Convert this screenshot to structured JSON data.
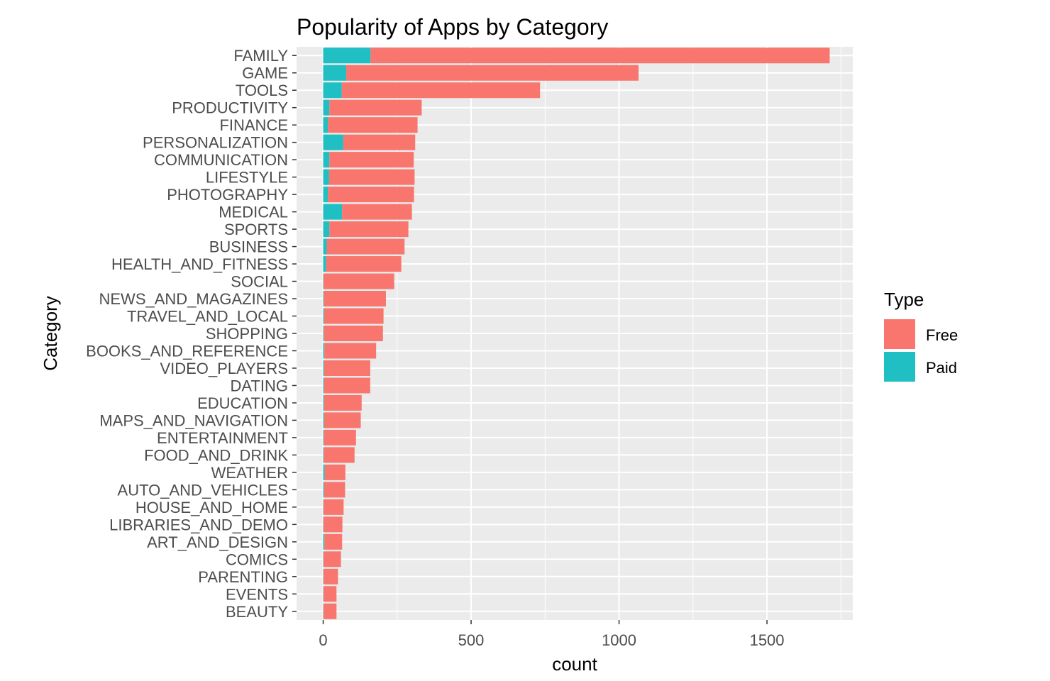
{
  "chart_data": {
    "type": "bar",
    "orientation": "horizontal",
    "stacked": true,
    "title": "Popularity of Apps by Category",
    "xlabel": "count",
    "ylabel": "Category",
    "xlim": [
      -90,
      1790
    ],
    "xticks": [
      0,
      500,
      1000,
      1500
    ],
    "categories": [
      "FAMILY",
      "GAME",
      "TOOLS",
      "PRODUCTIVITY",
      "FINANCE",
      "PERSONALIZATION",
      "COMMUNICATION",
      "LIFESTYLE",
      "PHOTOGRAPHY",
      "MEDICAL",
      "SPORTS",
      "BUSINESS",
      "HEALTH_AND_FITNESS",
      "SOCIAL",
      "NEWS_AND_MAGAZINES",
      "TRAVEL_AND_LOCAL",
      "SHOPPING",
      "BOOKS_AND_REFERENCE",
      "VIDEO_PLAYERS",
      "DATING",
      "EDUCATION",
      "MAPS_AND_NAVIGATION",
      "ENTERTAINMENT",
      "FOOD_AND_DRINK",
      "WEATHER",
      "AUTO_AND_VEHICLES",
      "HOUSE_AND_HOME",
      "LIBRARIES_AND_DEMO",
      "ART_AND_DESIGN",
      "COMICS",
      "PARENTING",
      "EVENTS",
      "BEAUTY"
    ],
    "series": [
      {
        "name": "Paid",
        "color": "#1fbfc4",
        "values": [
          160,
          78,
          63,
          21,
          16,
          68,
          21,
          20,
          16,
          64,
          21,
          12,
          10,
          1,
          2,
          3,
          2,
          4,
          3,
          3,
          3,
          3,
          2,
          2,
          5,
          3,
          1,
          1,
          4,
          1,
          1,
          1,
          1
        ]
      },
      {
        "name": "Free",
        "color": "#f8766d",
        "values": [
          1552,
          988,
          670,
          312,
          303,
          243,
          285,
          289,
          291,
          236,
          267,
          263,
          254,
          239,
          210,
          201,
          200,
          175,
          156,
          156,
          127,
          124,
          109,
          104,
          70,
          71,
          68,
          64,
          60,
          59,
          49,
          44,
          44
        ]
      }
    ],
    "legend": {
      "title": "Type",
      "position": "right",
      "items": [
        "Free",
        "Paid"
      ]
    },
    "grid": true,
    "panel_background": "#ebebeb",
    "grid_color": "#ffffff"
  }
}
